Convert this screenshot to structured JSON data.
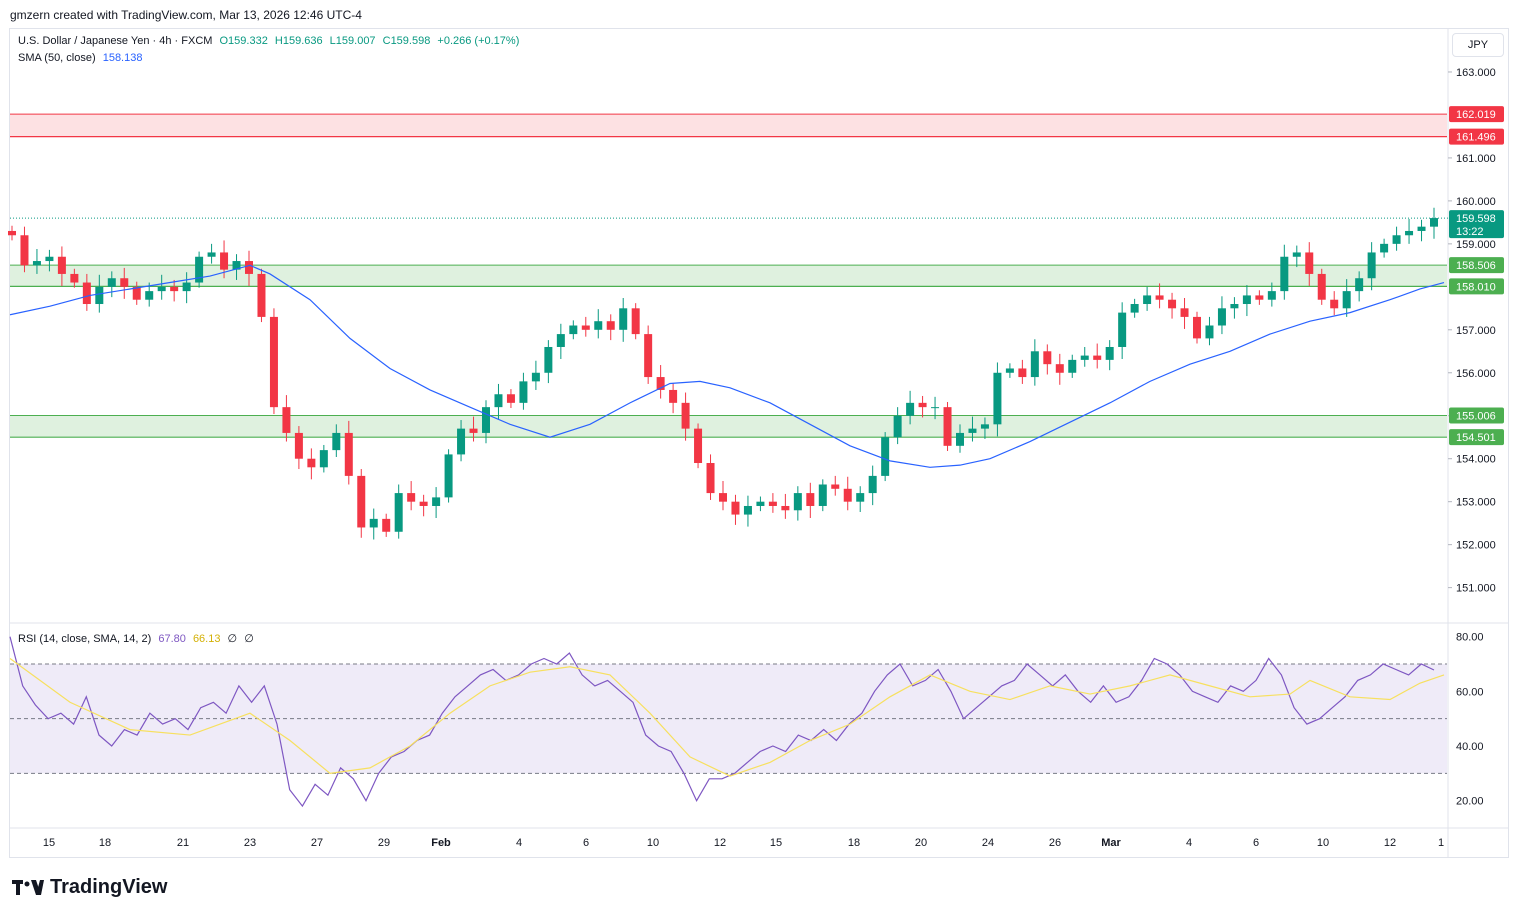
{
  "header": {
    "attribution": "gmzern created with TradingView.com, Mar 13, 2026 12:46 UTC-4"
  },
  "legend": {
    "symbol": "U.S. Dollar / Japanese Yen · 4h · FXCM",
    "open": "O159.332",
    "high": "H159.636",
    "low": "L159.007",
    "close": "C159.598",
    "change": "+0.266 (+0.17%)",
    "sma_label": "SMA (50, close)",
    "sma_value": "158.138",
    "rsi_label": "RSI (14, close, SMA, 14, 2)",
    "rsi_value": "67.80",
    "rsi_sma_value": "66.13",
    "rsi_extra1": "∅",
    "rsi_extra2": "∅"
  },
  "currency_button": "JPY",
  "brand": {
    "name": "TradingView",
    "logo_icon": "tradingview-logo-icon"
  },
  "colors": {
    "up": "#089981",
    "down": "#f23645",
    "sma": "#2962ff",
    "rsi": "#7e57c2",
    "rsi_sma": "#f7e05f",
    "resistance": "#f23645",
    "support": "#4caf50"
  },
  "chart_data": [
    {
      "type": "candlestick",
      "title": "U.S. Dollar / Japanese Yen · 4h · FXCM",
      "ylim": [
        150.2,
        164.0
      ],
      "y_ticks": [
        "163.000",
        "161.000",
        "160.000",
        "159.000",
        "157.000",
        "156.000",
        "155.000",
        "154.000",
        "153.000",
        "152.000",
        "151.000"
      ],
      "x_ticks": [
        "15",
        "18",
        "21",
        "23",
        "27",
        "29",
        "Feb",
        "4",
        "6",
        "10",
        "12",
        "15",
        "18",
        "20",
        "24",
        "26",
        "Mar",
        "4",
        "6",
        "10",
        "12",
        "1"
      ],
      "current_price": {
        "price": "159.598",
        "countdown": "13:22"
      },
      "zones": [
        {
          "kind": "resistance",
          "high": 162.019,
          "low": 161.496,
          "labels": [
            "162.019",
            "161.496"
          ]
        },
        {
          "kind": "support",
          "high": 158.506,
          "low": 158.01,
          "labels": [
            "158.506",
            "158.010"
          ]
        },
        {
          "kind": "support",
          "high": 155.006,
          "low": 154.501,
          "labels": [
            "155.006",
            "154.501"
          ]
        }
      ],
      "close_anchors": [
        159.2,
        158.5,
        158.6,
        158.7,
        158.3,
        158.1,
        157.6,
        158.0,
        158.2,
        158.0,
        157.7,
        157.9,
        158.0,
        157.9,
        158.1,
        158.7,
        158.8,
        158.4,
        158.6,
        158.3,
        157.3,
        155.2,
        154.6,
        154.0,
        153.8,
        154.2,
        154.6,
        153.6,
        152.4,
        152.6,
        152.3,
        153.2,
        153.0,
        152.9,
        153.1,
        154.1,
        154.7,
        154.6,
        155.2,
        155.5,
        155.3,
        155.8,
        156.0,
        156.6,
        156.9,
        157.1,
        157.0,
        157.2,
        157.0,
        157.5,
        156.9,
        155.9,
        155.6,
        155.3,
        154.7,
        153.9,
        153.2,
        153.0,
        152.7,
        152.9,
        153.0,
        152.9,
        152.8,
        153.2,
        152.9,
        153.4,
        153.3,
        153.0,
        153.2,
        153.6,
        154.5,
        155.0,
        155.3,
        155.2,
        155.2,
        154.3,
        154.6,
        154.7,
        154.8,
        156.0,
        156.1,
        155.9,
        156.5,
        156.2,
        156.0,
        156.3,
        156.4,
        156.3,
        156.6,
        157.4,
        157.6,
        157.8,
        157.7,
        157.5,
        157.3,
        156.8,
        157.1,
        157.5,
        157.6,
        157.8,
        157.7,
        157.9,
        158.7,
        158.8,
        158.3,
        157.7,
        157.5,
        157.9,
        158.2,
        158.8,
        159.0,
        159.2,
        159.3,
        159.4,
        159.6
      ],
      "sma": [
        [
          0,
          157.35
        ],
        [
          40,
          157.55
        ],
        [
          80,
          157.8
        ],
        [
          120,
          157.95
        ],
        [
          160,
          158.1
        ],
        [
          200,
          158.25
        ],
        [
          240,
          158.5
        ],
        [
          260,
          158.3
        ],
        [
          300,
          157.7
        ],
        [
          340,
          156.8
        ],
        [
          380,
          156.1
        ],
        [
          420,
          155.6
        ],
        [
          460,
          155.2
        ],
        [
          500,
          154.8
        ],
        [
          540,
          154.5
        ],
        [
          580,
          154.8
        ],
        [
          620,
          155.3
        ],
        [
          660,
          155.75
        ],
        [
          690,
          155.8
        ],
        [
          720,
          155.65
        ],
        [
          760,
          155.3
        ],
        [
          800,
          154.8
        ],
        [
          840,
          154.3
        ],
        [
          880,
          153.95
        ],
        [
          920,
          153.8
        ],
        [
          950,
          153.85
        ],
        [
          980,
          154.0
        ],
        [
          1020,
          154.4
        ],
        [
          1060,
          154.85
        ],
        [
          1100,
          155.3
        ],
        [
          1140,
          155.8
        ],
        [
          1180,
          156.2
        ],
        [
          1220,
          156.5
        ],
        [
          1260,
          156.9
        ],
        [
          1300,
          157.2
        ],
        [
          1340,
          157.4
        ],
        [
          1380,
          157.7
        ],
        [
          1410,
          157.95
        ],
        [
          1434,
          158.1
        ]
      ],
      "ylabel": "",
      "xlabel": ""
    },
    {
      "type": "line",
      "title": "RSI (14, close, SMA, 14, 2)",
      "ylim": [
        10,
        85
      ],
      "y_ticks": [
        "80.00",
        "60.00",
        "40.00",
        "20.00"
      ],
      "bands": {
        "upper": 70,
        "middle": 50,
        "lower": 30
      },
      "rsi": [
        80,
        62,
        55,
        50,
        52,
        48,
        58,
        44,
        40,
        46,
        44,
        52,
        48,
        50,
        46,
        54,
        56,
        52,
        62,
        56,
        62,
        48,
        24,
        18,
        26,
        22,
        32,
        28,
        20,
        30,
        36,
        38,
        42,
        44,
        52,
        58,
        62,
        66,
        68,
        64,
        66,
        70,
        72,
        70,
        74,
        66,
        62,
        64,
        60,
        56,
        44,
        40,
        38,
        30,
        20,
        28,
        28,
        30,
        34,
        38,
        40,
        38,
        44,
        42,
        46,
        42,
        48,
        52,
        60,
        66,
        70,
        62,
        64,
        68,
        60,
        50,
        54,
        58,
        62,
        64,
        70,
        66,
        62,
        66,
        60,
        56,
        62,
        56,
        58,
        64,
        72,
        70,
        66,
        60,
        58,
        56,
        62,
        60,
        64,
        72,
        66,
        54,
        48,
        50,
        54,
        58,
        64,
        66,
        70,
        68,
        66,
        70,
        67.8
      ],
      "rsi_sma": [
        [
          0,
          72
        ],
        [
          60,
          56
        ],
        [
          120,
          46
        ],
        [
          180,
          44
        ],
        [
          240,
          52
        ],
        [
          280,
          42
        ],
        [
          320,
          30
        ],
        [
          360,
          32
        ],
        [
          400,
          40
        ],
        [
          440,
          52
        ],
        [
          480,
          62
        ],
        [
          520,
          67
        ],
        [
          560,
          69
        ],
        [
          600,
          66
        ],
        [
          640,
          52
        ],
        [
          680,
          36
        ],
        [
          720,
          29
        ],
        [
          760,
          34
        ],
        [
          800,
          42
        ],
        [
          840,
          48
        ],
        [
          880,
          58
        ],
        [
          920,
          66
        ],
        [
          960,
          60
        ],
        [
          1000,
          57
        ],
        [
          1040,
          62
        ],
        [
          1080,
          59
        ],
        [
          1120,
          62
        ],
        [
          1160,
          66
        ],
        [
          1200,
          62
        ],
        [
          1240,
          58
        ],
        [
          1280,
          59
        ],
        [
          1300,
          64
        ],
        [
          1340,
          58
        ],
        [
          1380,
          57
        ],
        [
          1410,
          63
        ],
        [
          1434,
          66
        ]
      ]
    }
  ]
}
